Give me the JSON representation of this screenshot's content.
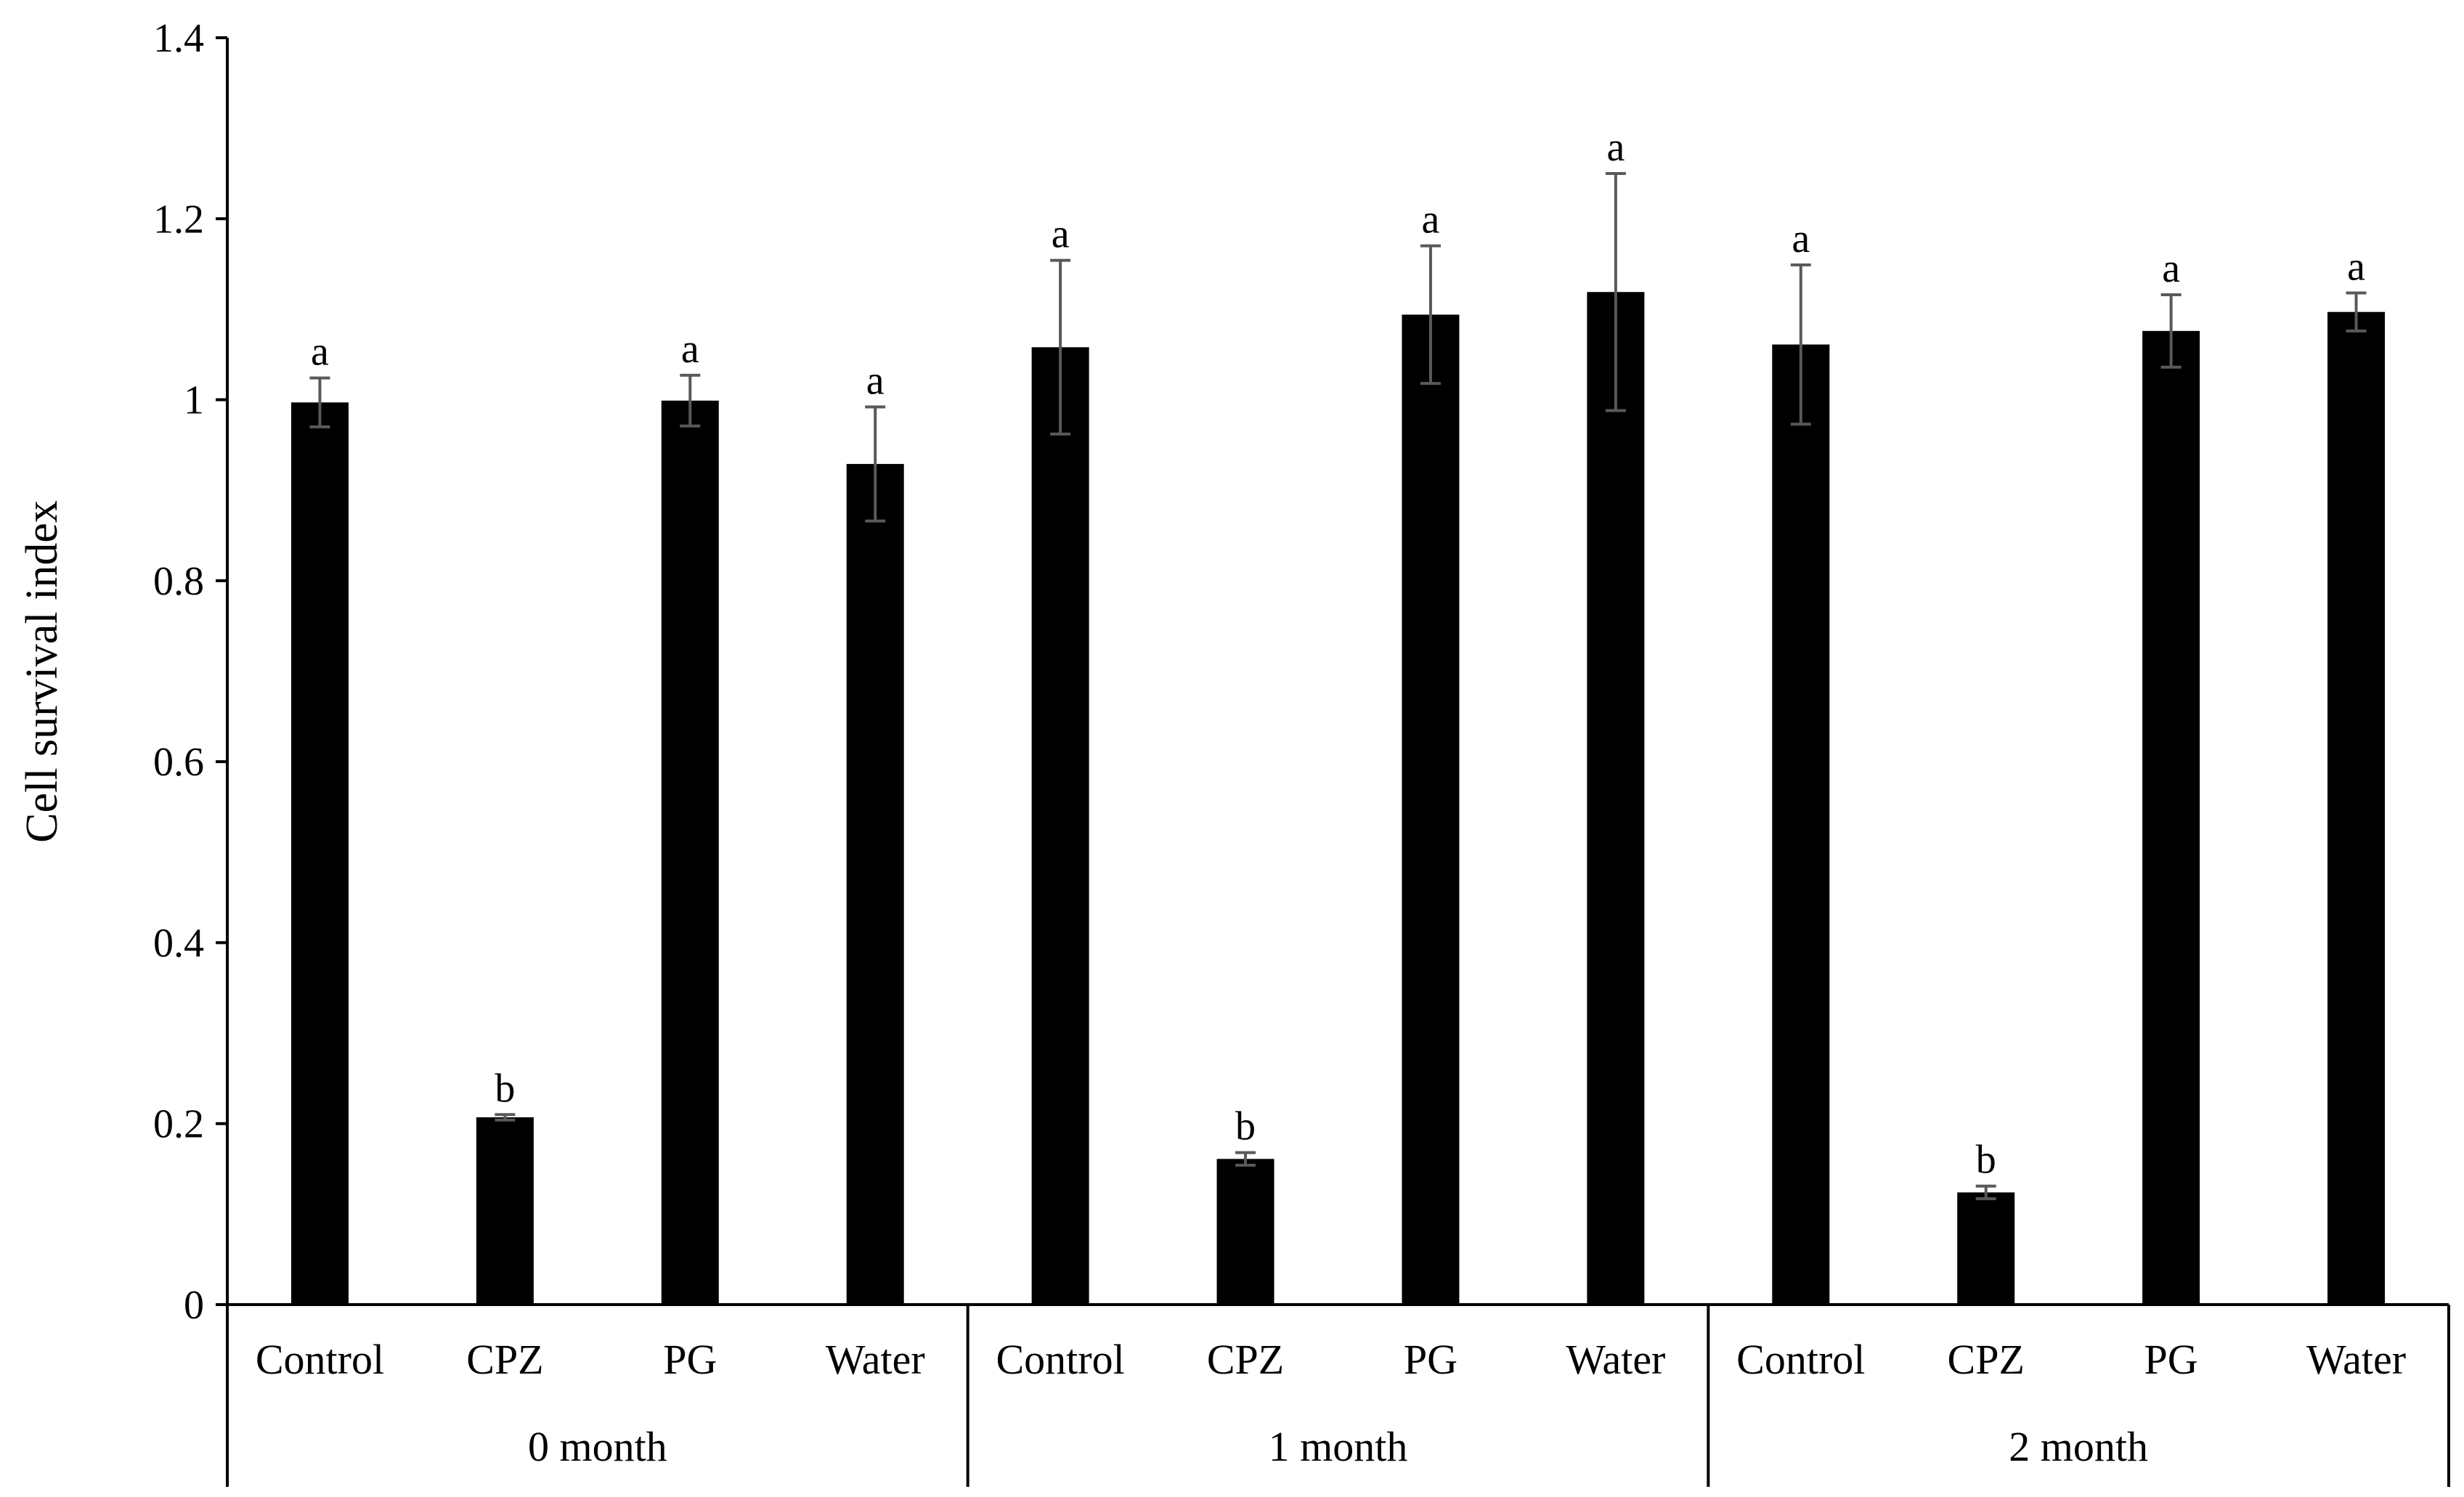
{
  "chart_data": {
    "type": "bar",
    "title": "",
    "ylabel": "Cell survival index",
    "xlabel": "",
    "ylim": [
      0,
      1.4
    ],
    "yticks": [
      0,
      0.2,
      0.4,
      0.6,
      0.8,
      1,
      1.2,
      1.4
    ],
    "ytick_labels": [
      "0",
      "0.2",
      "0.4",
      "0.6",
      "0.8",
      "1",
      "1.2",
      "1.4"
    ],
    "grid": false,
    "legend": "none",
    "bar_color": "#000000",
    "errorbar_color": "#595959",
    "groups": [
      {
        "label": "0 month",
        "bars": [
          {
            "category": "Control",
            "value": 0.997,
            "error": 0.027,
            "letter": "a"
          },
          {
            "category": "CPZ",
            "value": 0.207,
            "error": 0.003,
            "letter": "b"
          },
          {
            "category": "PG",
            "value": 0.999,
            "error": 0.028,
            "letter": "a"
          },
          {
            "category": "Water",
            "value": 0.929,
            "error": 0.063,
            "letter": "a"
          }
        ]
      },
      {
        "label": "1 month",
        "bars": [
          {
            "category": "Control",
            "value": 1.058,
            "error": 0.096,
            "letter": "a"
          },
          {
            "category": "CPZ",
            "value": 0.161,
            "error": 0.007,
            "letter": "b"
          },
          {
            "category": "PG",
            "value": 1.094,
            "error": 0.076,
            "letter": "a"
          },
          {
            "category": "Water",
            "value": 1.119,
            "error": 0.131,
            "letter": "a"
          }
        ]
      },
      {
        "label": "2 month",
        "bars": [
          {
            "category": "Control",
            "value": 1.061,
            "error": 0.088,
            "letter": "a"
          },
          {
            "category": "CPZ",
            "value": 0.124,
            "error": 0.007,
            "letter": "b"
          },
          {
            "category": "PG",
            "value": 1.076,
            "error": 0.04,
            "letter": "a"
          },
          {
            "category": "Water",
            "value": 1.097,
            "error": 0.021,
            "letter": "a"
          }
        ]
      }
    ]
  }
}
